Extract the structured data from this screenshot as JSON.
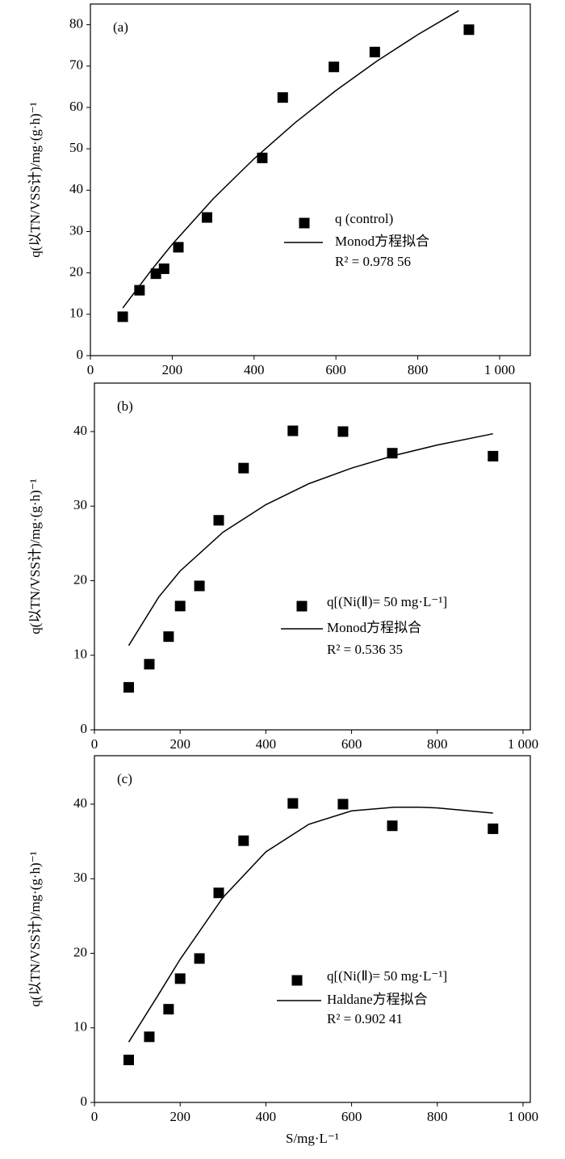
{
  "chart_data": [
    {
      "type": "scatter",
      "panel_label": "(a)",
      "ylabel": "q(以TN/VSS计)/mg·(g·h)⁻¹",
      "xlim": [
        0,
        1075
      ],
      "ylim": [
        0,
        85
      ],
      "xticks": [
        0,
        200,
        400,
        600,
        800,
        {
          "value": 1000,
          "label": "1 000"
        }
      ],
      "yticks": [
        0,
        10,
        20,
        30,
        40,
        50,
        60,
        70,
        80
      ],
      "series": [
        {
          "name": "q (control)",
          "type": "scatter",
          "color": "#000000",
          "x": [
            79,
            120,
            160,
            180,
            215,
            285,
            420,
            470,
            595,
            695,
            925
          ],
          "values": [
            9.4,
            15.8,
            19.8,
            21,
            26.2,
            33.4,
            47.8,
            62.4,
            69.8,
            73.4,
            78.8
          ]
        },
        {
          "name": "Monod方程拟合",
          "type": "line",
          "color": "#000000",
          "x": [
            79,
            150,
            200,
            300,
            400,
            500,
            600,
            700,
            800,
            900
          ],
          "values": [
            11.5,
            20.8,
            26.9,
            37.9,
            47.6,
            56.3,
            64.1,
            71.2,
            77.6,
            83.4
          ]
        }
      ],
      "annotation": "R² = 0.978 56"
    },
    {
      "type": "scatter",
      "panel_label": "(b)",
      "ylabel": "q(以TN/VSS计)/mg·(g·h)⁻¹",
      "xlim": [
        0,
        1017
      ],
      "ylim": [
        0,
        46.5
      ],
      "xticks": [
        0,
        200,
        400,
        600,
        800,
        {
          "value": 1000,
          "label": "1 000"
        }
      ],
      "yticks": [
        0,
        10,
        20,
        30,
        40
      ],
      "series": [
        {
          "name": "q[(Ni(Ⅱ)=  50 mg·L⁻¹]",
          "type": "scatter",
          "color": "#000000",
          "x": [
            80,
            128,
            173,
            200,
            245,
            290,
            348,
            463,
            580,
            695,
            930
          ],
          "values": [
            5.7,
            8.8,
            12.5,
            16.6,
            19.3,
            28.1,
            35.1,
            40.1,
            40,
            37.1,
            36.7
          ]
        },
        {
          "name": "Monod方程拟合",
          "type": "line",
          "color": "#000000",
          "x": [
            80,
            150,
            200,
            300,
            400,
            500,
            600,
            700,
            800,
            930
          ],
          "values": [
            11.3,
            17.8,
            21.3,
            26.5,
            30.2,
            33,
            35.1,
            36.8,
            38.2,
            39.7
          ]
        }
      ],
      "annotation": "R² = 0.536 35"
    },
    {
      "type": "scatter",
      "panel_label": "(c)",
      "ylabel": "q(以TN/VSS计)/mg·(g·h)⁻¹",
      "xlabel": "S/mg·L⁻¹",
      "xlim": [
        0,
        1017
      ],
      "ylim": [
        0,
        46.5
      ],
      "xticks": [
        0,
        200,
        400,
        600,
        800,
        {
          "value": 1000,
          "label": "1 000"
        }
      ],
      "yticks": [
        0,
        10,
        20,
        30,
        40
      ],
      "series": [
        {
          "name": "q[(Ni(Ⅱ)=  50 mg·L⁻¹]",
          "type": "scatter",
          "color": "#000000",
          "x": [
            80,
            128,
            173,
            200,
            245,
            290,
            348,
            463,
            580,
            695,
            930
          ],
          "values": [
            5.7,
            8.8,
            12.5,
            16.6,
            19.3,
            28.1,
            35.1,
            40.1,
            40,
            37.1,
            36.7
          ]
        },
        {
          "name": "Haldane方程拟合",
          "type": "line",
          "color": "#000000",
          "x": [
            80,
            150,
            200,
            300,
            400,
            500,
            600,
            700,
            760,
            800,
            930
          ],
          "values": [
            8.1,
            14.5,
            19.2,
            27.5,
            33.6,
            37.3,
            39.1,
            39.6,
            39.6,
            39.5,
            38.8
          ]
        }
      ],
      "annotation": "R² = 0.902 41"
    }
  ]
}
